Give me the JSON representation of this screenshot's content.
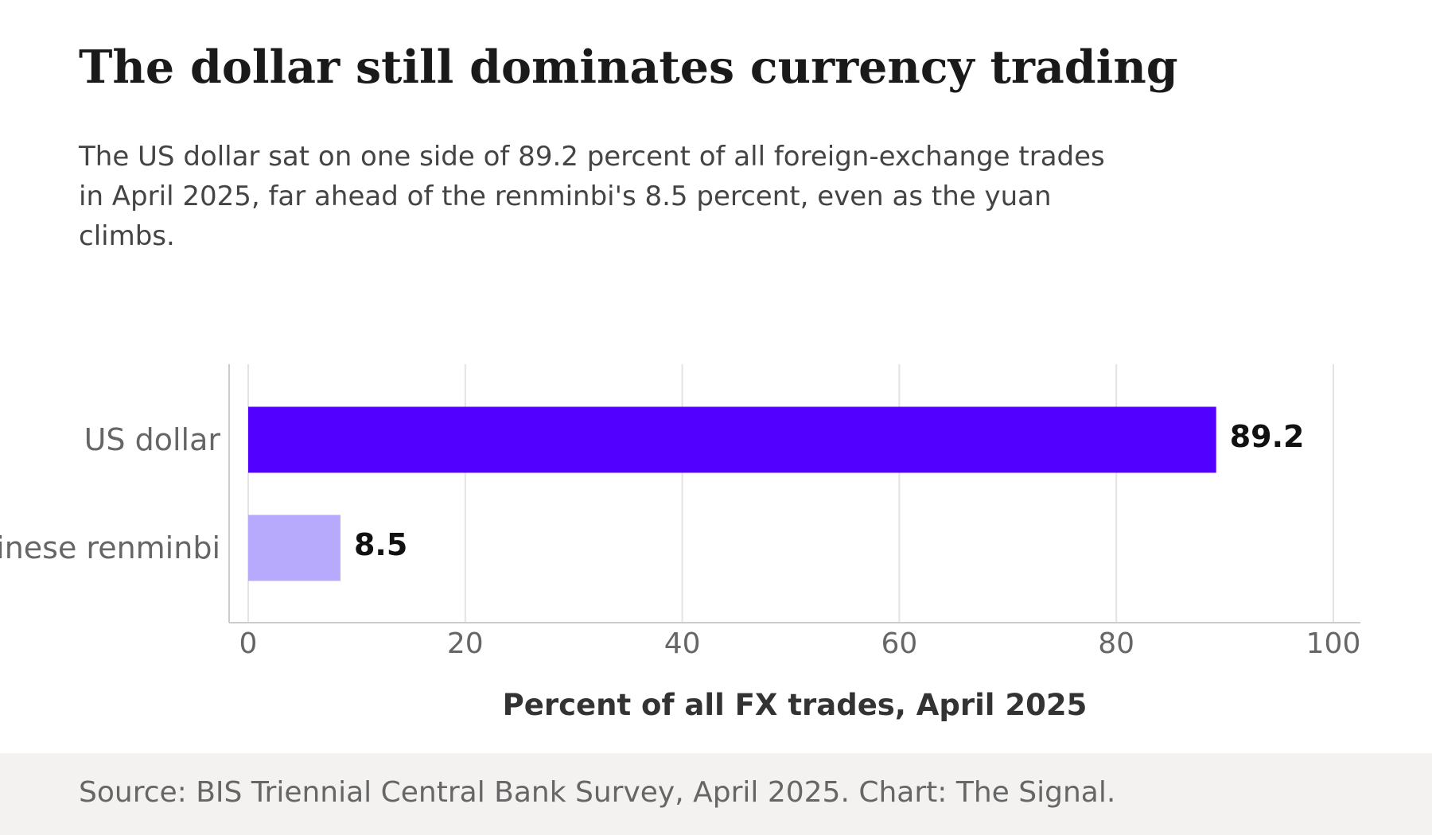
{
  "title": "The dollar still dominates currency trading",
  "subtitle": "The US dollar sat on one side of 89.2 percent of all foreign-exchange trades in April 2025, far ahead of the renminbi's 8.5 percent, even as the yuan climbs.",
  "source": "Source: BIS Triennial Central Bank Survey, April 2025. Chart: The Signal.",
  "colors": {
    "primary": "#5200ff",
    "secondary": "#b7aafd",
    "grid": "#e3e3e3",
    "footer_bg": "#f3f2f1"
  },
  "chart_data": {
    "type": "bar",
    "orientation": "horizontal",
    "categories": [
      "US dollar",
      "Chinese renminbi"
    ],
    "values": [
      89.2,
      8.5
    ],
    "value_labels": [
      "89.2",
      "8.5"
    ],
    "xlabel": "Percent of all FX trades, April 2025",
    "ylabel": "",
    "xlim": [
      0,
      100
    ],
    "xticks": [
      0,
      20,
      40,
      60,
      80,
      100
    ],
    "grid": true
  }
}
